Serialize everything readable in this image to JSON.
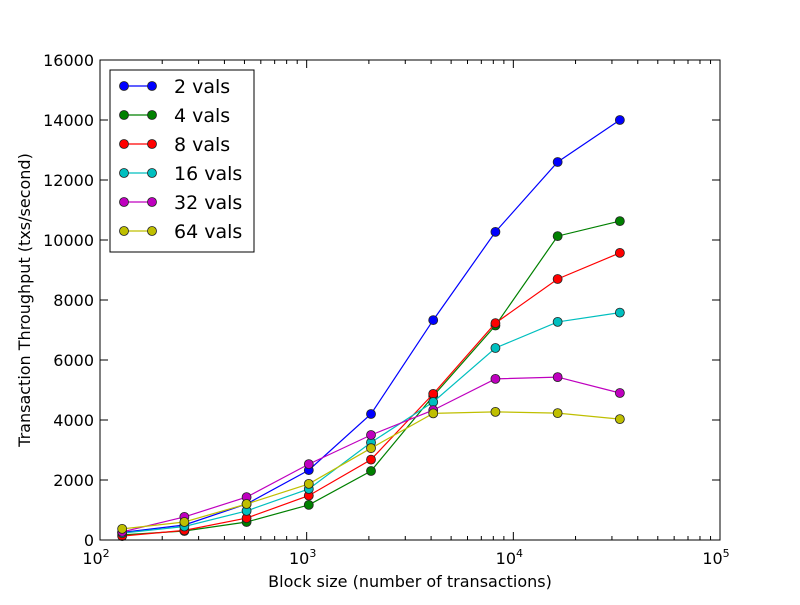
{
  "chart_data": {
    "type": "line",
    "title": "",
    "xlabel": "Block size (number of transactions)",
    "ylabel": "Transaction Throughput (txs/second)",
    "xscale": "log",
    "xlim": [
      100,
      100000
    ],
    "ylim": [
      0,
      16000
    ],
    "xticks": [
      {
        "v": 100,
        "base": "10",
        "exp": "2"
      },
      {
        "v": 1000,
        "base": "10",
        "exp": "3"
      },
      {
        "v": 10000,
        "base": "10",
        "exp": "4"
      },
      {
        "v": 100000,
        "base": "10",
        "exp": "5"
      }
    ],
    "yticks": [
      "0",
      "2000",
      "4000",
      "6000",
      "8000",
      "10000",
      "12000",
      "14000",
      "16000"
    ],
    "grid": false,
    "legend_position": "top-left",
    "x": [
      128,
      256,
      512,
      1024,
      2048,
      4096,
      8192,
      16384,
      32768
    ],
    "series": [
      {
        "name": "2 vals",
        "color": "#0000ff",
        "values": [
          250,
          500,
          1200,
          2330,
          4200,
          7330,
          10270,
          12600,
          14000
        ]
      },
      {
        "name": "4 vals",
        "color": "#008000",
        "values": [
          170,
          300,
          600,
          1170,
          2300,
          4800,
          7150,
          10130,
          10630
        ]
      },
      {
        "name": "8 vals",
        "color": "#ff0000",
        "values": [
          130,
          320,
          730,
          1480,
          2680,
          4870,
          7230,
          8700,
          9570
        ]
      },
      {
        "name": "16 vals",
        "color": "#00bfbf",
        "values": [
          230,
          450,
          970,
          1700,
          3250,
          4600,
          6400,
          7270,
          7580
        ]
      },
      {
        "name": "32 vals",
        "color": "#bf00bf",
        "values": [
          270,
          770,
          1430,
          2530,
          3500,
          4330,
          5370,
          5430,
          4900
        ]
      },
      {
        "name": "64 vals",
        "color": "#bfbf00",
        "values": [
          370,
          600,
          1200,
          1870,
          3060,
          4220,
          4270,
          4230,
          4030
        ]
      }
    ]
  }
}
